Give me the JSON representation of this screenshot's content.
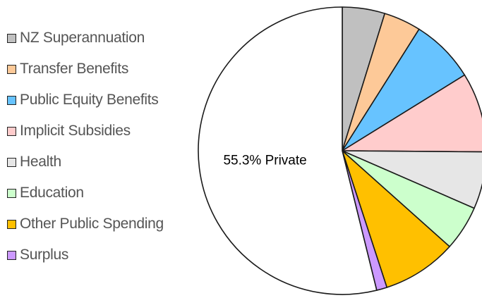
{
  "chart_data": {
    "type": "pie",
    "legend_position": "left",
    "slices": [
      {
        "name": "NZ Superannuation",
        "value": 4.9,
        "color": "#c0c0c0"
      },
      {
        "name": "Transfer Benefits",
        "value": 4.3,
        "color": "#fdc998"
      },
      {
        "name": "Public Equity Benefits",
        "value": 7.4,
        "color": "#67c3ff"
      },
      {
        "name": "Implicit Subsidies",
        "value": 9.2,
        "color": "#ffcccc"
      },
      {
        "name": "Health",
        "value": 6.6,
        "color": "#e6e6e6"
      },
      {
        "name": "Education",
        "value": 5.2,
        "color": "#ccffcc"
      },
      {
        "name": "Other Public Spending",
        "value": 8.6,
        "color": "#ffc000"
      },
      {
        "name": "Surplus",
        "value": 1.2,
        "color": "#cc99ff"
      },
      {
        "name": "Private",
        "value": 55.3,
        "color": "#ffffff",
        "label": "55.3% Private",
        "in_legend": false
      }
    ]
  }
}
